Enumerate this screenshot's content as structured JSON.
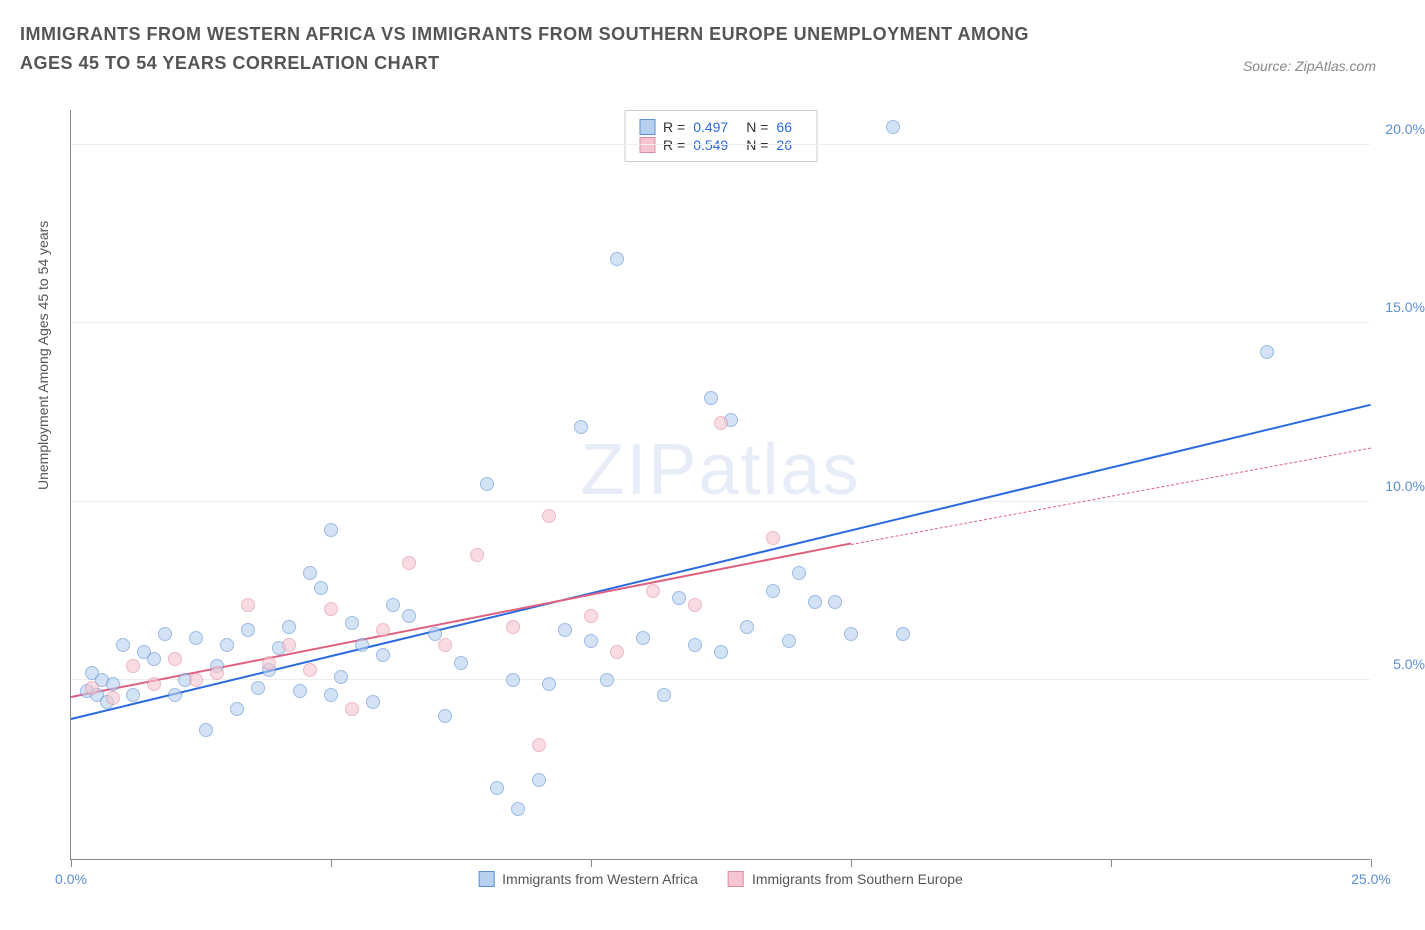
{
  "title": "IMMIGRANTS FROM WESTERN AFRICA VS IMMIGRANTS FROM SOUTHERN EUROPE UNEMPLOYMENT AMONG AGES 45 TO 54 YEARS CORRELATION CHART",
  "source_label": "Source: ZipAtlas.com",
  "y_axis_title": "Unemployment Among Ages 45 to 54 years",
  "watermark": "ZIPatlas",
  "chart": {
    "type": "scatter",
    "xlim": [
      0,
      25
    ],
    "ylim": [
      0,
      21
    ],
    "x_ticks": [
      0,
      5,
      10,
      15,
      20,
      25
    ],
    "x_tick_labels": [
      "0.0%",
      "",
      "",
      "",
      "",
      "25.0%"
    ],
    "y_ticks": [
      5,
      10,
      15,
      20
    ],
    "y_tick_labels": [
      "5.0%",
      "10.0%",
      "15.0%",
      "20.0%"
    ],
    "grid_color": "#eeeeee",
    "background_color": "#ffffff",
    "axis_color": "#888888",
    "label_color": "#5b8fd6",
    "label_fontsize": 14,
    "point_radius": 7,
    "point_opacity": 0.6
  },
  "series": [
    {
      "name": "Immigrants from Western Africa",
      "color_fill": "#b8d0f0",
      "color_stroke": "#5b8fd6",
      "trend_color": "#2a6ae0",
      "R": "0.497",
      "N": "66",
      "trend": {
        "x1": 0,
        "y1": 3.9,
        "x2": 25,
        "y2": 12.7
      },
      "points": [
        [
          0.3,
          4.7
        ],
        [
          0.4,
          5.2
        ],
        [
          0.5,
          4.6
        ],
        [
          0.6,
          5.0
        ],
        [
          0.7,
          4.4
        ],
        [
          0.8,
          4.9
        ],
        [
          1.0,
          6.0
        ],
        [
          1.2,
          4.6
        ],
        [
          1.4,
          5.8
        ],
        [
          1.6,
          5.6
        ],
        [
          1.8,
          6.3
        ],
        [
          2.0,
          4.6
        ],
        [
          2.2,
          5.0
        ],
        [
          2.4,
          6.2
        ],
        [
          2.6,
          3.6
        ],
        [
          2.8,
          5.4
        ],
        [
          3.0,
          6.0
        ],
        [
          3.2,
          4.2
        ],
        [
          3.4,
          6.4
        ],
        [
          3.6,
          4.8
        ],
        [
          3.8,
          5.3
        ],
        [
          4.0,
          5.9
        ],
        [
          4.2,
          6.5
        ],
        [
          4.4,
          4.7
        ],
        [
          4.6,
          8.0
        ],
        [
          4.8,
          7.6
        ],
        [
          5.0,
          9.2
        ],
        [
          5.2,
          5.1
        ],
        [
          5.4,
          6.6
        ],
        [
          5.6,
          6.0
        ],
        [
          5.8,
          4.4
        ],
        [
          6.0,
          5.7
        ],
        [
          6.5,
          6.8
        ],
        [
          7.0,
          6.3
        ],
        [
          7.2,
          4.0
        ],
        [
          7.5,
          5.5
        ],
        [
          8.0,
          10.5
        ],
        [
          8.2,
          2.0
        ],
        [
          8.5,
          5.0
        ],
        [
          8.6,
          1.4
        ],
        [
          9.0,
          2.2
        ],
        [
          9.2,
          4.9
        ],
        [
          9.5,
          6.4
        ],
        [
          9.8,
          12.1
        ],
        [
          10.0,
          6.1
        ],
        [
          10.3,
          5.0
        ],
        [
          10.5,
          16.8
        ],
        [
          11.0,
          6.2
        ],
        [
          11.4,
          4.6
        ],
        [
          11.7,
          7.3
        ],
        [
          12.0,
          6.0
        ],
        [
          12.3,
          12.9
        ],
        [
          12.5,
          5.8
        ],
        [
          12.7,
          12.3
        ],
        [
          13.0,
          6.5
        ],
        [
          13.5,
          7.5
        ],
        [
          13.8,
          6.1
        ],
        [
          14.0,
          8.0
        ],
        [
          14.3,
          7.2
        ],
        [
          14.7,
          7.2
        ],
        [
          15.0,
          6.3
        ],
        [
          15.8,
          20.5
        ],
        [
          16.0,
          6.3
        ],
        [
          23.0,
          14.2
        ],
        [
          5.0,
          4.6
        ],
        [
          6.2,
          7.1
        ]
      ]
    },
    {
      "name": "Immigrants from Southern Europe",
      "color_fill": "#f5c6d0",
      "color_stroke": "#e08ca0",
      "trend_color": "#e06080",
      "R": "0.549",
      "N": "26",
      "trend_solid": {
        "x1": 0,
        "y1": 4.5,
        "x2": 15,
        "y2": 8.8
      },
      "trend_dash": {
        "x1": 15,
        "y1": 8.8,
        "x2": 25,
        "y2": 11.5
      },
      "points": [
        [
          0.4,
          4.8
        ],
        [
          0.8,
          4.5
        ],
        [
          1.2,
          5.4
        ],
        [
          1.6,
          4.9
        ],
        [
          2.0,
          5.6
        ],
        [
          2.4,
          5.0
        ],
        [
          2.8,
          5.2
        ],
        [
          3.4,
          7.1
        ],
        [
          3.8,
          5.5
        ],
        [
          4.2,
          6.0
        ],
        [
          4.6,
          5.3
        ],
        [
          5.0,
          7.0
        ],
        [
          5.4,
          4.2
        ],
        [
          6.0,
          6.4
        ],
        [
          6.5,
          8.3
        ],
        [
          7.2,
          6.0
        ],
        [
          7.8,
          8.5
        ],
        [
          8.5,
          6.5
        ],
        [
          9.0,
          3.2
        ],
        [
          9.2,
          9.6
        ],
        [
          10.0,
          6.8
        ],
        [
          10.5,
          5.8
        ],
        [
          11.2,
          7.5
        ],
        [
          12.0,
          7.1
        ],
        [
          12.5,
          12.2
        ],
        [
          13.5,
          9.0
        ]
      ]
    }
  ],
  "legend": {
    "series_a_label": "Immigrants from Western Africa",
    "series_b_label": "Immigrants from Southern Europe"
  },
  "stats_labels": {
    "R": "R =",
    "N": "N ="
  }
}
